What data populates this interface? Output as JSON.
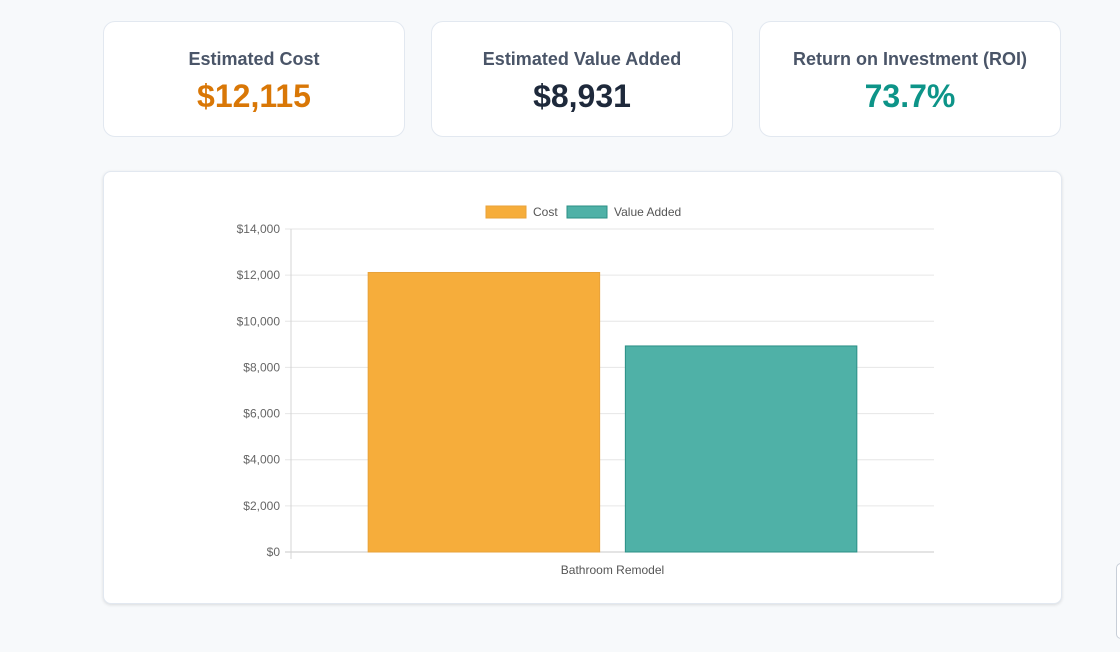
{
  "summary": {
    "cost": {
      "label": "Estimated Cost",
      "value": "$12,115",
      "color": "#d97706"
    },
    "value_added": {
      "label": "Estimated Value Added",
      "value": "$8,931",
      "color": "#1e293b"
    },
    "roi": {
      "label": "Return on Investment (ROI)",
      "value": "73.7%",
      "color": "#0d9488"
    }
  },
  "chart_data": {
    "type": "bar",
    "categories": [
      "Bathroom Remodel"
    ],
    "series": [
      {
        "name": "Cost",
        "values": [
          12115
        ],
        "color": "#f6ad3b",
        "border": "#e8a23a"
      },
      {
        "name": "Value Added",
        "values": [
          8931
        ],
        "color": "#4fb1a7",
        "border": "#2b8f86"
      }
    ],
    "ylim": [
      0,
      14000
    ],
    "yticks": [
      0,
      2000,
      4000,
      6000,
      8000,
      10000,
      12000,
      14000
    ],
    "ytick_labels": [
      "$0",
      "$2,000",
      "$4,000",
      "$6,000",
      "$8,000",
      "$10,000",
      "$12,000",
      "$14,000"
    ],
    "grid": true,
    "legend": "top-center",
    "title": "",
    "xlabel": "",
    "ylabel": ""
  }
}
